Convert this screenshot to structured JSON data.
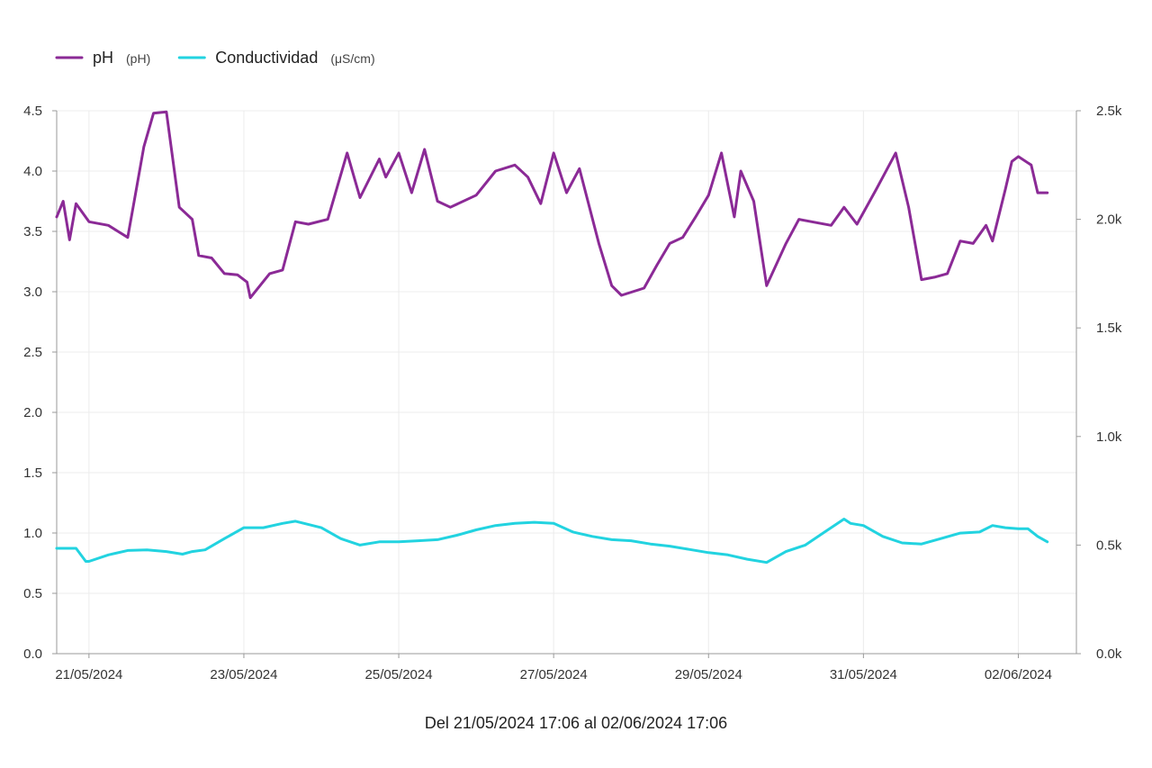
{
  "chart_data": {
    "type": "line",
    "title": "",
    "x_range_label": "Del 21/05/2024 17:06 al 02/06/2024 17:06",
    "x_start": "2024-05-20T14:00",
    "x_end": "2024-06-02T18:00",
    "x_ticks": [
      {
        "label": "21/05/2024",
        "value": "2024-05-21T00:00"
      },
      {
        "label": "23/05/2024",
        "value": "2024-05-23T00:00"
      },
      {
        "label": "25/05/2024",
        "value": "2024-05-25T00:00"
      },
      {
        "label": "27/05/2024",
        "value": "2024-05-27T00:00"
      },
      {
        "label": "29/05/2024",
        "value": "2024-05-29T00:00"
      },
      {
        "label": "31/05/2024",
        "value": "2024-05-31T00:00"
      },
      {
        "label": "02/06/2024",
        "value": "2024-06-02T00:00"
      }
    ],
    "y_left": {
      "label": "",
      "range": [
        0,
        4.5
      ],
      "ticks": [
        "0.0",
        "0.5",
        "1.0",
        "1.5",
        "2.0",
        "2.5",
        "3.0",
        "3.5",
        "4.0",
        "4.5"
      ]
    },
    "y_right": {
      "label": "",
      "range": [
        0,
        2500
      ],
      "ticks": [
        "0.0k",
        "0.5k",
        "1.0k",
        "1.5k",
        "2.0k",
        "2.5k"
      ]
    },
    "grid": true,
    "legend_position": "top-left",
    "series": [
      {
        "name": "pH",
        "unit": "(pH)",
        "axis": "left",
        "color": "#8b2a96",
        "points": [
          [
            "2024-05-20T14:00",
            3.62
          ],
          [
            "2024-05-20T16:00",
            3.75
          ],
          [
            "2024-05-20T18:00",
            3.43
          ],
          [
            "2024-05-20T20:00",
            3.73
          ],
          [
            "2024-05-21T00:00",
            3.58
          ],
          [
            "2024-05-21T06:00",
            3.55
          ],
          [
            "2024-05-21T09:00",
            3.5
          ],
          [
            "2024-05-21T12:00",
            3.45
          ],
          [
            "2024-05-21T14:00",
            3.75
          ],
          [
            "2024-05-21T17:00",
            4.2
          ],
          [
            "2024-05-21T20:00",
            4.48
          ],
          [
            "2024-05-22T00:00",
            4.49
          ],
          [
            "2024-05-22T04:00",
            3.7
          ],
          [
            "2024-05-22T08:00",
            3.6
          ],
          [
            "2024-05-22T10:00",
            3.3
          ],
          [
            "2024-05-22T14:00",
            3.28
          ],
          [
            "2024-05-22T18:00",
            3.15
          ],
          [
            "2024-05-22T22:00",
            3.14
          ],
          [
            "2024-05-23T01:00",
            3.08
          ],
          [
            "2024-05-23T02:00",
            2.95
          ],
          [
            "2024-05-23T08:00",
            3.15
          ],
          [
            "2024-05-23T12:00",
            3.18
          ],
          [
            "2024-05-23T16:00",
            3.58
          ],
          [
            "2024-05-23T20:00",
            3.56
          ],
          [
            "2024-05-24T02:00",
            3.6
          ],
          [
            "2024-05-24T08:00",
            4.15
          ],
          [
            "2024-05-24T12:00",
            3.78
          ],
          [
            "2024-05-24T18:00",
            4.1
          ],
          [
            "2024-05-24T20:00",
            3.95
          ],
          [
            "2024-05-25T00:00",
            4.15
          ],
          [
            "2024-05-25T04:00",
            3.82
          ],
          [
            "2024-05-25T08:00",
            4.18
          ],
          [
            "2024-05-25T12:00",
            3.75
          ],
          [
            "2024-05-25T16:00",
            3.7
          ],
          [
            "2024-05-26T00:00",
            3.8
          ],
          [
            "2024-05-26T06:00",
            4.0
          ],
          [
            "2024-05-26T12:00",
            4.05
          ],
          [
            "2024-05-26T16:00",
            3.95
          ],
          [
            "2024-05-26T20:00",
            3.73
          ],
          [
            "2024-05-27T00:00",
            4.15
          ],
          [
            "2024-05-27T04:00",
            3.82
          ],
          [
            "2024-05-27T08:00",
            4.02
          ],
          [
            "2024-05-27T14:00",
            3.4
          ],
          [
            "2024-05-27T18:00",
            3.05
          ],
          [
            "2024-05-27T21:00",
            2.97
          ],
          [
            "2024-05-28T04:00",
            3.03
          ],
          [
            "2024-05-28T08:00",
            3.22
          ],
          [
            "2024-05-28T12:00",
            3.4
          ],
          [
            "2024-05-28T16:00",
            3.45
          ],
          [
            "2024-05-28T20:00",
            3.62
          ],
          [
            "2024-05-29T00:00",
            3.8
          ],
          [
            "2024-05-29T04:00",
            4.15
          ],
          [
            "2024-05-29T08:00",
            3.62
          ],
          [
            "2024-05-29T10:00",
            4.0
          ],
          [
            "2024-05-29T14:00",
            3.75
          ],
          [
            "2024-05-29T18:00",
            3.05
          ],
          [
            "2024-05-30T00:00",
            3.4
          ],
          [
            "2024-05-30T04:00",
            3.6
          ],
          [
            "2024-05-30T08:00",
            3.58
          ],
          [
            "2024-05-30T14:00",
            3.55
          ],
          [
            "2024-05-30T18:00",
            3.7
          ],
          [
            "2024-05-30T22:00",
            3.56
          ],
          [
            "2024-05-31T04:00",
            3.85
          ],
          [
            "2024-05-31T06:00",
            3.95
          ],
          [
            "2024-05-31T10:00",
            4.15
          ],
          [
            "2024-05-31T14:00",
            3.7
          ],
          [
            "2024-05-31T18:00",
            3.1
          ],
          [
            "2024-05-31T22:00",
            3.12
          ],
          [
            "2024-06-01T02:00",
            3.15
          ],
          [
            "2024-06-01T06:00",
            3.42
          ],
          [
            "2024-06-01T10:00",
            3.4
          ],
          [
            "2024-06-01T14:00",
            3.55
          ],
          [
            "2024-06-01T16:00",
            3.42
          ],
          [
            "2024-06-01T20:00",
            3.85
          ],
          [
            "2024-06-01T22:00",
            4.08
          ],
          [
            "2024-06-02T00:00",
            4.12
          ],
          [
            "2024-06-02T04:00",
            4.05
          ],
          [
            "2024-06-02T06:00",
            3.82
          ],
          [
            "2024-06-02T09:00",
            3.82
          ]
        ]
      },
      {
        "name": "Conductividad",
        "unit": "(μS/cm)",
        "axis": "right",
        "color": "#22d3e0",
        "points": [
          [
            "2024-05-20T14:00",
            485
          ],
          [
            "2024-05-20T20:00",
            485
          ],
          [
            "2024-05-20T23:00",
            425
          ],
          [
            "2024-05-21T00:00",
            425
          ],
          [
            "2024-05-21T06:00",
            455
          ],
          [
            "2024-05-21T12:00",
            475
          ],
          [
            "2024-05-21T18:00",
            478
          ],
          [
            "2024-05-22T00:00",
            470
          ],
          [
            "2024-05-22T05:00",
            458
          ],
          [
            "2024-05-22T08:00",
            470
          ],
          [
            "2024-05-22T12:00",
            478
          ],
          [
            "2024-05-22T18:00",
            530
          ],
          [
            "2024-05-23T00:00",
            580
          ],
          [
            "2024-05-23T06:00",
            580
          ],
          [
            "2024-05-23T12:00",
            600
          ],
          [
            "2024-05-23T16:00",
            610
          ],
          [
            "2024-05-24T00:00",
            580
          ],
          [
            "2024-05-24T06:00",
            530
          ],
          [
            "2024-05-24T12:00",
            500
          ],
          [
            "2024-05-24T18:00",
            515
          ],
          [
            "2024-05-25T00:00",
            515
          ],
          [
            "2024-05-25T06:00",
            520
          ],
          [
            "2024-05-25T12:00",
            525
          ],
          [
            "2024-05-25T18:00",
            545
          ],
          [
            "2024-05-26T00:00",
            570
          ],
          [
            "2024-05-26T06:00",
            590
          ],
          [
            "2024-05-26T12:00",
            600
          ],
          [
            "2024-05-26T18:00",
            605
          ],
          [
            "2024-05-27T00:00",
            600
          ],
          [
            "2024-05-27T06:00",
            560
          ],
          [
            "2024-05-27T12:00",
            540
          ],
          [
            "2024-05-27T18:00",
            525
          ],
          [
            "2024-05-28T00:00",
            520
          ],
          [
            "2024-05-28T06:00",
            505
          ],
          [
            "2024-05-28T12:00",
            495
          ],
          [
            "2024-05-28T18:00",
            480
          ],
          [
            "2024-05-29T00:00",
            465
          ],
          [
            "2024-05-29T06:00",
            455
          ],
          [
            "2024-05-29T12:00",
            435
          ],
          [
            "2024-05-29T18:00",
            420
          ],
          [
            "2024-05-30T00:00",
            470
          ],
          [
            "2024-05-30T06:00",
            500
          ],
          [
            "2024-05-30T12:00",
            560
          ],
          [
            "2024-05-30T18:00",
            620
          ],
          [
            "2024-05-30T20:00",
            600
          ],
          [
            "2024-05-31T00:00",
            590
          ],
          [
            "2024-05-31T06:00",
            540
          ],
          [
            "2024-05-31T12:00",
            510
          ],
          [
            "2024-05-31T18:00",
            505
          ],
          [
            "2024-06-01T00:00",
            530
          ],
          [
            "2024-06-01T06:00",
            555
          ],
          [
            "2024-06-01T12:00",
            560
          ],
          [
            "2024-06-01T16:00",
            590
          ],
          [
            "2024-06-01T20:00",
            580
          ],
          [
            "2024-06-02T00:00",
            575
          ],
          [
            "2024-06-02T03:00",
            575
          ],
          [
            "2024-06-02T06:00",
            540
          ],
          [
            "2024-06-02T09:00",
            515
          ]
        ]
      }
    ]
  }
}
